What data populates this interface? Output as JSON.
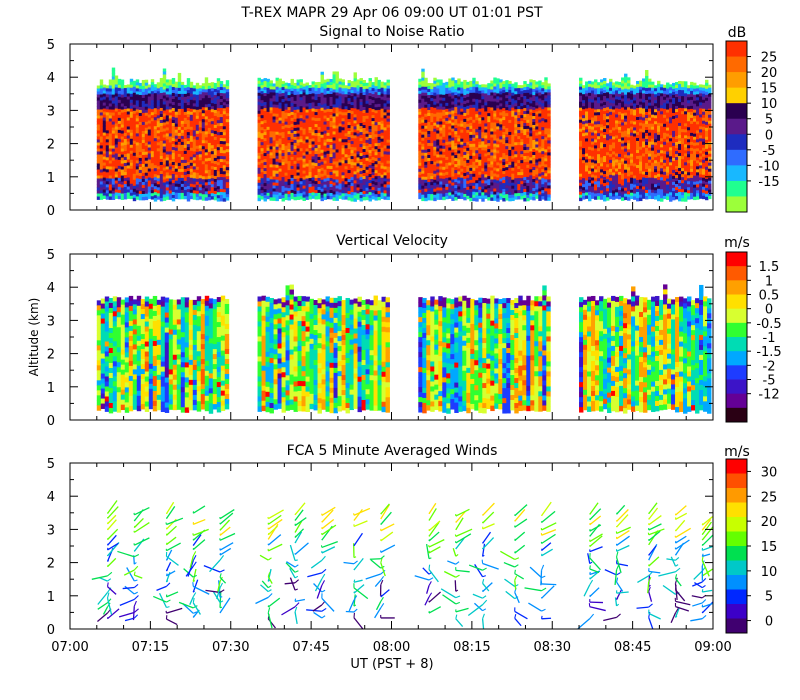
{
  "figure": {
    "title": "T-REX   MAPR 29 Apr 06   09:00 UT   01:01   PST",
    "x_axis_label": "UT  (PST + 8)",
    "x_ticks": [
      "07:00",
      "07:15",
      "07:30",
      "07:45",
      "08:00",
      "08:15",
      "08:30",
      "08:45",
      "09:00"
    ]
  },
  "chart_data": [
    {
      "type": "heatmap",
      "title": "Signal to Noise Ratio",
      "units": "dB",
      "ylabel": "",
      "xlim_minutes": [
        0,
        120
      ],
      "ylim": [
        0,
        5
      ],
      "y_ticks": [
        "0",
        "1",
        "2",
        "3",
        "4",
        "5"
      ],
      "colorbar_labels": [
        "25",
        "20",
        "15",
        "10",
        "5",
        "0",
        "-5",
        "-10",
        "-15"
      ],
      "colors": [
        "#ff3000",
        "#ff6a00",
        "#ff9d00",
        "#ffd000",
        "#2a0050",
        "#5a1a8a",
        "#1e2cbf",
        "#2f6cff",
        "#18b8ff",
        "#20ff90",
        "#9cff3a"
      ],
      "data_segments": [
        {
          "start": "07:05",
          "end": "07:29",
          "alt_low": 0.35,
          "alt_top": 4.0
        },
        {
          "start": "07:35",
          "end": "07:59",
          "alt_low": 0.35,
          "alt_top": 4.0
        },
        {
          "start": "08:05",
          "end": "08:29",
          "alt_low": 0.35,
          "alt_top": 4.0
        },
        {
          "start": "08:35",
          "end": "08:59",
          "alt_low": 0.35,
          "alt_top": 4.0
        }
      ],
      "profile": [
        {
          "alt_from": 3.6,
          "alt_to": 4.0,
          "value": "-15 to -5"
        },
        {
          "alt_from": 3.1,
          "alt_to": 3.6,
          "value": "0 to 10"
        },
        {
          "alt_from": 1.0,
          "alt_to": 3.1,
          "value": "15 to 25"
        },
        {
          "alt_from": 0.35,
          "alt_to": 1.0,
          "value": "-10 to 10"
        }
      ]
    },
    {
      "type": "heatmap",
      "title": "Vertical Velocity",
      "units": "m/s",
      "ylabel": "Altitude (km)",
      "xlim_minutes": [
        0,
        120
      ],
      "ylim": [
        0,
        5
      ],
      "y_ticks": [
        "0",
        "1",
        "2",
        "3",
        "4",
        "5"
      ],
      "colorbar_labels": [
        "1.5",
        "1",
        "0.5",
        "0",
        "-0.5",
        "-1",
        "-1.5",
        "-2",
        "-5",
        "-12"
      ],
      "colors": [
        "#ff0000",
        "#ff5a00",
        "#ffa000",
        "#ffe000",
        "#d8ff30",
        "#30ff30",
        "#00dcb4",
        "#00a8ff",
        "#1e3cff",
        "#3c14c8",
        "#640096",
        "#2a0014"
      ],
      "data_segments": [
        {
          "start": "07:05",
          "end": "07:29",
          "alt_low": 0.35,
          "alt_top": 3.7
        },
        {
          "start": "07:35",
          "end": "07:59",
          "alt_low": 0.35,
          "alt_top": 3.7
        },
        {
          "start": "08:05",
          "end": "08:29",
          "alt_low": 0.35,
          "alt_top": 3.7
        },
        {
          "start": "08:35",
          "end": "08:59",
          "alt_low": 0.35,
          "alt_top": 3.7
        }
      ]
    },
    {
      "type": "scatter",
      "title": "FCA 5 Minute Averaged Winds",
      "units": "m/s",
      "ylabel": "",
      "xlim_minutes": [
        0,
        120
      ],
      "ylim": [
        0,
        5
      ],
      "y_ticks": [
        "0",
        "1",
        "2",
        "3",
        "4",
        "5"
      ],
      "colorbar_labels": [
        "30",
        "25",
        "20",
        "15",
        "10",
        "5",
        "0"
      ],
      "colors": [
        "#ff0000",
        "#ff5000",
        "#ff9a00",
        "#ffe000",
        "#c8ff00",
        "#64ff00",
        "#00e050",
        "#00c8c8",
        "#0090ff",
        "#0028ff",
        "#3c00c8",
        "#400070"
      ],
      "profile_times": [
        "07:07",
        "07:12",
        "07:18",
        "07:23",
        "07:28",
        "07:37",
        "07:42",
        "07:47",
        "07:53",
        "07:58",
        "08:07",
        "08:12",
        "08:17",
        "08:23",
        "08:28",
        "08:37",
        "08:42",
        "08:48",
        "08:53",
        "08:58"
      ],
      "alt_range_km": [
        0.3,
        3.6
      ]
    }
  ]
}
